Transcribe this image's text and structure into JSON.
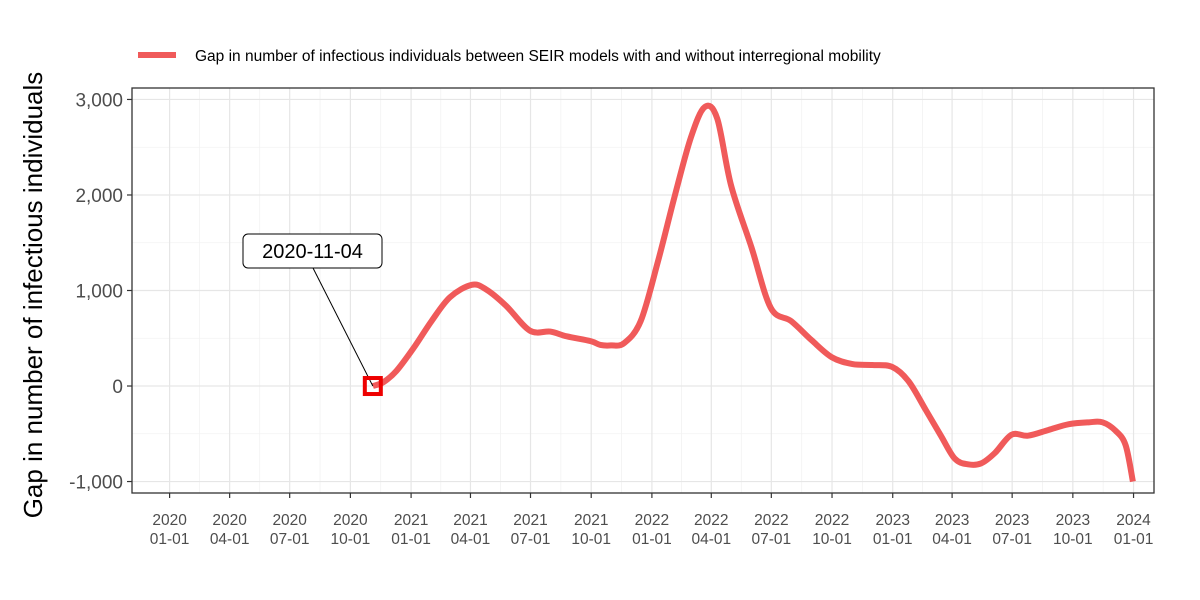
{
  "chart_data": {
    "type": "line",
    "title": "",
    "xlabel": "",
    "ylabel": "Gap in number of infectious individuals",
    "ylim": [
      -1120,
      3120
    ],
    "xlim": [
      "2019-11-05",
      "2024-02-01"
    ],
    "grid": true,
    "legend_position": "top",
    "yticks": [
      -1000,
      0,
      1000,
      2000,
      3000
    ],
    "ytick_labels": [
      "-1,000",
      "0",
      "1,000",
      "2,000",
      "3,000"
    ],
    "xticks": [
      "2020-01-01",
      "2020-04-01",
      "2020-07-01",
      "2020-10-01",
      "2021-01-01",
      "2021-04-01",
      "2021-07-01",
      "2021-10-01",
      "2022-01-01",
      "2022-04-01",
      "2022-07-01",
      "2022-10-01",
      "2023-01-01",
      "2023-04-01",
      "2023-07-01",
      "2023-10-01",
      "2024-01-01"
    ],
    "xtick_labels": [
      [
        "2020",
        "01-01"
      ],
      [
        "2020",
        "04-01"
      ],
      [
        "2020",
        "07-01"
      ],
      [
        "2020",
        "10-01"
      ],
      [
        "2021",
        "01-01"
      ],
      [
        "2021",
        "04-01"
      ],
      [
        "2021",
        "07-01"
      ],
      [
        "2021",
        "10-01"
      ],
      [
        "2022",
        "01-01"
      ],
      [
        "2022",
        "04-01"
      ],
      [
        "2022",
        "07-01"
      ],
      [
        "2022",
        "10-01"
      ],
      [
        "2023",
        "01-01"
      ],
      [
        "2023",
        "04-01"
      ],
      [
        "2023",
        "07-01"
      ],
      [
        "2023",
        "10-01"
      ],
      [
        "2024",
        "01-01"
      ]
    ],
    "series": [
      {
        "name": "Gap in number of infectious individuals between SEIR models with and without interregional mobility",
        "color": "#f05a5a",
        "x": [
          "2020-11-04",
          "2020-11-20",
          "2020-12-10",
          "2021-01-05",
          "2021-02-01",
          "2021-03-01",
          "2021-04-03",
          "2021-04-25",
          "2021-05-25",
          "2021-06-30",
          "2021-07-31",
          "2021-08-25",
          "2021-09-30",
          "2021-10-15",
          "2021-10-31",
          "2021-11-20",
          "2021-12-15",
          "2022-01-10",
          "2022-02-05",
          "2022-03-01",
          "2022-03-22",
          "2022-04-10",
          "2022-05-01",
          "2022-06-01",
          "2022-06-30",
          "2022-07-31",
          "2022-08-31",
          "2022-10-01",
          "2022-11-01",
          "2022-12-01",
          "2022-12-31",
          "2023-01-25",
          "2023-02-20",
          "2023-03-15",
          "2023-04-05",
          "2023-04-25",
          "2023-05-15",
          "2023-06-05",
          "2023-06-30",
          "2023-07-25",
          "2023-08-25",
          "2023-09-25",
          "2023-10-25",
          "2023-11-15",
          "2023-12-05",
          "2023-12-20",
          "2023-12-31"
        ],
        "y": [
          0,
          40,
          160,
          400,
          680,
          930,
          1060,
          1010,
          840,
          580,
          570,
          520,
          470,
          430,
          425,
          450,
          680,
          1300,
          2000,
          2600,
          2920,
          2800,
          2100,
          1450,
          820,
          680,
          480,
          300,
          230,
          220,
          200,
          50,
          -250,
          -520,
          -760,
          -820,
          -810,
          -700,
          -510,
          -520,
          -460,
          -400,
          -380,
          -380,
          -470,
          -620,
          -1000
        ]
      }
    ],
    "annotations": [
      {
        "text": "2020-11-04",
        "x": "2020-11-04",
        "y": 0
      }
    ]
  }
}
